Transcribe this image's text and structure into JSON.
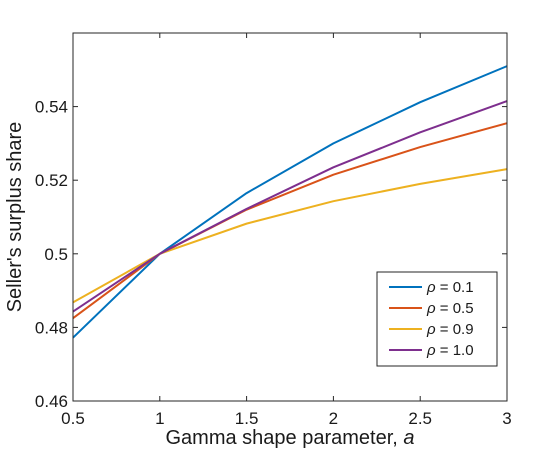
{
  "chart_data": {
    "type": "line",
    "xlabel": "Gamma shape parameter, ",
    "xlabel_var": "a",
    "ylabel": "Seller's surplus share",
    "xlim": [
      0.5,
      3
    ],
    "ylim": [
      0.46,
      0.56
    ],
    "xticks": [
      0.5,
      1,
      1.5,
      2,
      2.5,
      3
    ],
    "xtick_labels": [
      "0.5",
      "1",
      "1.5",
      "2",
      "2.5",
      "3"
    ],
    "yticks": [
      0.46,
      0.48,
      0.5,
      0.52,
      0.54
    ],
    "ytick_labels": [
      "0.46",
      "0.48",
      "0.5",
      "0.52",
      "0.54"
    ],
    "grid": false,
    "legend_position": "bottom-right",
    "x": [
      0.5,
      1,
      1.5,
      2,
      2.5,
      3
    ],
    "series": [
      {
        "name_symbol": "ρ",
        "name_value": " = 0.1",
        "color": "#0072BD",
        "values": [
          0.4772,
          0.5,
          0.5165,
          0.53,
          0.5412,
          0.551
        ]
      },
      {
        "name_symbol": "ρ",
        "name_value": " = 0.5",
        "color": "#D95319",
        "values": [
          0.4825,
          0.5,
          0.512,
          0.5215,
          0.529,
          0.5355
        ]
      },
      {
        "name_symbol": "ρ",
        "name_value": " = 0.9",
        "color": "#EDB120",
        "values": [
          0.4868,
          0.5,
          0.5082,
          0.5143,
          0.519,
          0.523
        ]
      },
      {
        "name_symbol": "ρ",
        "name_value": " = 1.0",
        "color": "#7E2F8E",
        "values": [
          0.4843,
          0.5,
          0.5122,
          0.5235,
          0.533,
          0.5415
        ]
      }
    ]
  }
}
